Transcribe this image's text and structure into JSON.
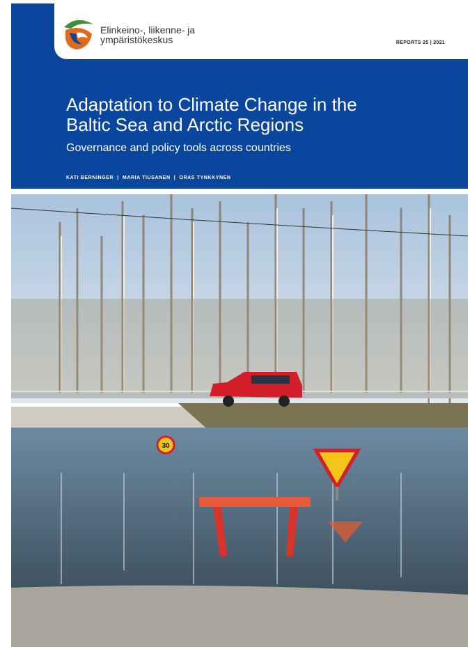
{
  "header": {
    "organization": [
      "Elinkeino-, liikenne- ja",
      "ympäristökeskus"
    ],
    "series": "REPORTS 25 | 2021"
  },
  "cover": {
    "title": [
      "Adaptation to Climate Change in the",
      "Baltic Sea and Arctic Regions"
    ],
    "subtitle": "Governance and policy tools across countries",
    "authors": "KATI BERNINGER  |  MARIA TIUSANEN  |  ORAS TYNKKYNEN"
  },
  "photo": {
    "sign": "30"
  }
}
